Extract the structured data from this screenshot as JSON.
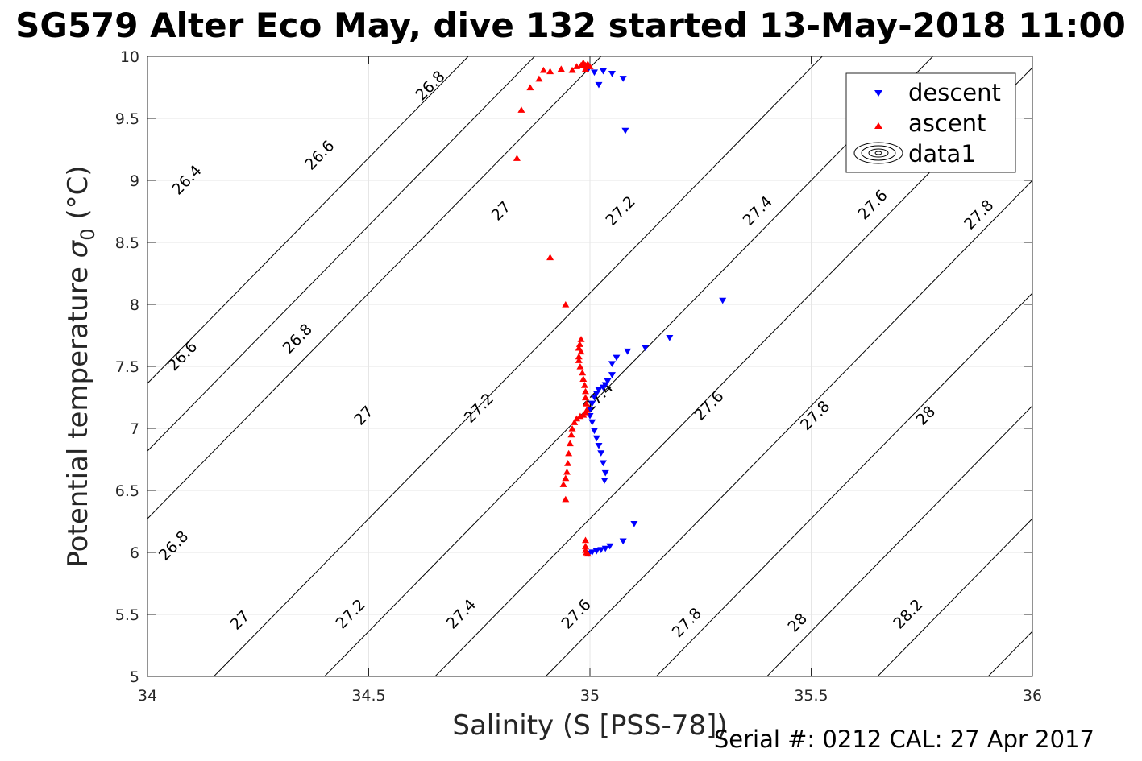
{
  "title": "SG579 Alter Eco May, dive 132 started 13-May-2018 11:00",
  "footer": "Serial #: 0212  CAL: 27 Apr 2017",
  "colors": {
    "descent": "#0000ff",
    "ascent": "#ff0000",
    "contour": "#000000",
    "grid": "#e6e6e6"
  },
  "chart_data": {
    "type": "scatter",
    "xlabel": "Salinity (S [PSS-78])",
    "ylabel": "Potential temperature",
    "ylabel_symbol": "σ",
    "ylabel_sub": "0",
    "ylabel_unit": "(°C)",
    "xlim": [
      34,
      36
    ],
    "ylim": [
      5,
      10
    ],
    "xticks": [
      34,
      34.5,
      35,
      35.5,
      36
    ],
    "yticks": [
      5,
      5.5,
      6,
      6.5,
      7,
      7.5,
      8,
      8.5,
      9,
      9.5,
      10
    ],
    "grid": true,
    "legend": {
      "position": "top-right",
      "entries": [
        {
          "label": "descent",
          "marker": "triangle-down",
          "color": "#0000ff"
        },
        {
          "label": "ascent",
          "marker": "triangle-up",
          "color": "#ff0000"
        },
        {
          "label": "data1",
          "marker": "contour"
        }
      ]
    },
    "series": [
      {
        "name": "descent",
        "marker": "triangle-down",
        "points": [
          [
            34.995,
            9.89
          ],
          [
            35.01,
            9.87
          ],
          [
            35.03,
            9.88
          ],
          [
            35.05,
            9.86
          ],
          [
            35.075,
            9.82
          ],
          [
            35.02,
            9.77
          ],
          [
            35.08,
            9.4
          ],
          [
            35.3,
            8.03
          ],
          [
            35.18,
            7.73
          ],
          [
            35.125,
            7.65
          ],
          [
            35.085,
            7.62
          ],
          [
            35.06,
            7.57
          ],
          [
            35.05,
            7.52
          ],
          [
            35.05,
            7.43
          ],
          [
            35.04,
            7.38
          ],
          [
            35.035,
            7.35
          ],
          [
            35.03,
            7.33
          ],
          [
            35.02,
            7.31
          ],
          [
            35.015,
            7.28
          ],
          [
            35.01,
            7.25
          ],
          [
            35.005,
            7.2
          ],
          [
            35.0,
            7.15
          ],
          [
            35.0,
            7.1
          ],
          [
            35.005,
            7.05
          ],
          [
            35.01,
            6.98
          ],
          [
            35.015,
            6.92
          ],
          [
            35.02,
            6.86
          ],
          [
            35.025,
            6.8
          ],
          [
            35.03,
            6.72
          ],
          [
            35.035,
            6.64
          ],
          [
            35.033,
            6.58
          ],
          [
            35.1,
            6.23
          ],
          [
            35.075,
            6.09
          ],
          [
            35.045,
            6.05
          ],
          [
            35.035,
            6.03
          ],
          [
            35.025,
            6.02
          ],
          [
            35.015,
            6.01
          ],
          [
            35.005,
            6.0
          ],
          [
            34.998,
            5.99
          ]
        ]
      },
      {
        "name": "ascent",
        "marker": "triangle-up",
        "points": [
          [
            34.97,
            9.92
          ],
          [
            34.98,
            9.93
          ],
          [
            34.985,
            9.95
          ],
          [
            34.99,
            9.93
          ],
          [
            34.995,
            9.94
          ],
          [
            35.0,
            9.92
          ],
          [
            34.99,
            9.9
          ],
          [
            34.96,
            9.89
          ],
          [
            34.935,
            9.9
          ],
          [
            34.91,
            9.88
          ],
          [
            34.895,
            9.89
          ],
          [
            34.885,
            9.82
          ],
          [
            34.865,
            9.75
          ],
          [
            34.845,
            9.57
          ],
          [
            34.835,
            9.18
          ],
          [
            34.91,
            8.38
          ],
          [
            34.945,
            8.0
          ],
          [
            34.98,
            7.72
          ],
          [
            34.977,
            7.68
          ],
          [
            34.975,
            7.65
          ],
          [
            34.98,
            7.62
          ],
          [
            34.975,
            7.58
          ],
          [
            34.975,
            7.55
          ],
          [
            34.978,
            7.5
          ],
          [
            34.983,
            7.45
          ],
          [
            34.985,
            7.4
          ],
          [
            34.988,
            7.35
          ],
          [
            34.99,
            7.3
          ],
          [
            34.99,
            7.25
          ],
          [
            34.992,
            7.2
          ],
          [
            34.993,
            7.15
          ],
          [
            34.99,
            7.13
          ],
          [
            34.985,
            7.11
          ],
          [
            34.978,
            7.1
          ],
          [
            34.97,
            7.08
          ],
          [
            34.965,
            7.05
          ],
          [
            34.96,
            7.0
          ],
          [
            34.958,
            6.95
          ],
          [
            34.955,
            6.88
          ],
          [
            34.952,
            6.8
          ],
          [
            34.95,
            6.72
          ],
          [
            34.948,
            6.65
          ],
          [
            34.945,
            6.6
          ],
          [
            34.94,
            6.55
          ],
          [
            34.945,
            6.43
          ],
          [
            34.99,
            6.1
          ],
          [
            34.99,
            6.05
          ],
          [
            34.992,
            6.0
          ],
          [
            34.995,
            5.99
          ],
          [
            34.99,
            6.02
          ]
        ]
      }
    ],
    "contours": {
      "slope_psu_per_degC": 0.275,
      "levels": [
        {
          "level": "26.4",
          "x_at_ymin": 33.35
        },
        {
          "level": "26.6",
          "x_at_ymin": 33.5
        },
        {
          "level": "26.8",
          "x_at_ymin": 33.65
        },
        {
          "level": "27",
          "x_at_ymin": 34.15
        },
        {
          "level": "27.2",
          "x_at_ymin": 34.4
        },
        {
          "level": "27.4",
          "x_at_ymin": 34.65
        },
        {
          "level": "27.6",
          "x_at_ymin": 34.9
        },
        {
          "level": "27.8",
          "x_at_ymin": 35.15
        },
        {
          "level": "28",
          "x_at_ymin": 35.4
        },
        {
          "level": "28.2",
          "x_at_ymin": 35.65
        },
        {
          "level": "28.4",
          "x_at_ymin": 35.9
        }
      ],
      "labels": [
        {
          "text": "26.4",
          "x": 34.09,
          "y": 9.0
        },
        {
          "text": "26.6",
          "x": 34.39,
          "y": 9.2
        },
        {
          "text": "26.8",
          "x": 34.64,
          "y": 9.76
        },
        {
          "text": "27",
          "x": 34.8,
          "y": 8.75
        },
        {
          "text": "27.2",
          "x": 35.07,
          "y": 8.75
        },
        {
          "text": "27.4",
          "x": 35.38,
          "y": 8.75
        },
        {
          "text": "27.6",
          "x": 35.64,
          "y": 8.8
        },
        {
          "text": "27.8",
          "x": 35.88,
          "y": 8.72
        },
        {
          "text": "26.6",
          "x": 34.08,
          "y": 7.58
        },
        {
          "text": "26.8",
          "x": 34.34,
          "y": 7.72
        },
        {
          "text": "27",
          "x": 34.49,
          "y": 7.1
        },
        {
          "text": "27.2",
          "x": 34.75,
          "y": 7.16
        },
        {
          "text": "27.4",
          "x": 35.02,
          "y": 7.25
        },
        {
          "text": "27.6",
          "x": 35.27,
          "y": 7.18
        },
        {
          "text": "27.8",
          "x": 35.51,
          "y": 7.1
        },
        {
          "text": "28",
          "x": 35.76,
          "y": 7.1
        },
        {
          "text": "26.8",
          "x": 34.06,
          "y": 6.05
        },
        {
          "text": "27",
          "x": 34.21,
          "y": 5.45
        },
        {
          "text": "27.2",
          "x": 34.46,
          "y": 5.5
        },
        {
          "text": "27.4",
          "x": 34.71,
          "y": 5.5
        },
        {
          "text": "27.6",
          "x": 34.97,
          "y": 5.5
        },
        {
          "text": "27.8",
          "x": 35.22,
          "y": 5.43
        },
        {
          "text": "28",
          "x": 35.47,
          "y": 5.43
        },
        {
          "text": "28.2",
          "x": 35.72,
          "y": 5.5
        }
      ]
    }
  }
}
